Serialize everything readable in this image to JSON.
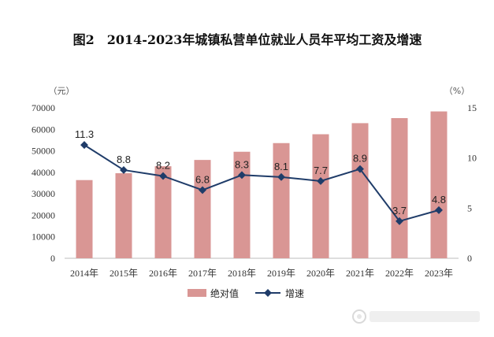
{
  "chart_data": {
    "type": "bar+line",
    "title": "图2　2014-2023年城镇私营单位就业人员年平均工资及增速",
    "categories": [
      "2014年",
      "2015年",
      "2016年",
      "2017年",
      "2018年",
      "2019年",
      "2020年",
      "2021年",
      "2022年",
      "2023年"
    ],
    "y_left_unit": "（元）",
    "y_right_unit": "（%）",
    "y_left_ticks": [
      "0",
      "10000",
      "20000",
      "30000",
      "40000",
      "50000",
      "60000",
      "70000"
    ],
    "y_right_ticks": [
      "0",
      "5",
      "10",
      "15"
    ],
    "ylim_left": [
      0,
      70000
    ],
    "ylim_right": [
      0,
      15
    ],
    "series": [
      {
        "name": "绝对值",
        "type": "bar",
        "axis": "left",
        "color": "#d99694",
        "values": [
          36390,
          39589,
          42833,
          45761,
          49575,
          53604,
          57727,
          62884,
          65237,
          68340
        ]
      },
      {
        "name": "增速",
        "type": "line",
        "axis": "right",
        "color": "#1f3c69",
        "values": [
          11.3,
          8.8,
          8.2,
          6.8,
          8.3,
          8.1,
          7.7,
          8.9,
          3.7,
          4.8
        ],
        "labels": [
          "11.3",
          "8.8",
          "8.2",
          "6.8",
          "8.3",
          "8.1",
          "7.7",
          "8.9",
          "3.7",
          "4.8"
        ]
      }
    ],
    "legend_position": "bottom",
    "grid": false
  }
}
